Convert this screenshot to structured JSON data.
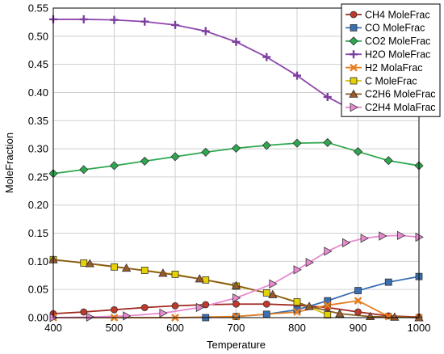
{
  "chart_data": {
    "type": "line",
    "title": "",
    "xlabel": "Temperature",
    "ylabel": "MoleFraction",
    "xlim": [
      400,
      1000
    ],
    "ylim": [
      0,
      0.55
    ],
    "x_ticks": [
      "400",
      "500",
      "600",
      "700",
      "800",
      "900",
      "1000"
    ],
    "y_ticks": [
      "0.00",
      "0.05",
      "0.10",
      "0.15",
      "0.20",
      "0.25",
      "0.30",
      "0.35",
      "0.40",
      "0.45",
      "0.50",
      "0.55"
    ],
    "grid": true,
    "legend_position": "top-right",
    "series": [
      {
        "name": "CH4 MoleFrac",
        "color": "#c0392b",
        "marker": "circle",
        "line_color": "#a0281e",
        "x": [
          400,
          450,
          500,
          550,
          600,
          650,
          700,
          750,
          800,
          850,
          900,
          950,
          1000
        ],
        "y": [
          0.007,
          0.01,
          0.014,
          0.018,
          0.021,
          0.023,
          0.024,
          0.024,
          0.022,
          0.018,
          0.01,
          0.003,
          0.001
        ]
      },
      {
        "name": "CO MoleFrac",
        "color": "#3a6fb0",
        "marker": "square",
        "line_color": "#3a6fb0",
        "x": [
          650,
          700,
          750,
          800,
          850,
          900,
          950,
          1000
        ],
        "y": [
          0.0,
          0.002,
          0.006,
          0.014,
          0.03,
          0.048,
          0.063,
          0.073
        ]
      },
      {
        "name": "CO2 MoleFrac",
        "color": "#2ea84f",
        "marker": "diamond",
        "line_color": "#2ea84f",
        "x": [
          400,
          450,
          500,
          550,
          600,
          650,
          700,
          750,
          800,
          850,
          900,
          950,
          1000
        ],
        "y": [
          0.256,
          0.263,
          0.27,
          0.278,
          0.286,
          0.294,
          0.301,
          0.306,
          0.31,
          0.311,
          0.295,
          0.279,
          0.27
        ]
      },
      {
        "name": "H2O MoleFrac",
        "color": "#7b3f9e",
        "marker": "plus",
        "line_color": "#8e44ad",
        "x": [
          400,
          450,
          500,
          550,
          600,
          650,
          700,
          750,
          800,
          850,
          880
        ],
        "y": [
          0.53,
          0.53,
          0.529,
          0.526,
          0.52,
          0.509,
          0.49,
          0.463,
          0.43,
          0.392,
          0.375
        ]
      },
      {
        "name": "H2 MolaFrac",
        "color": "#e67e22",
        "marker": "x",
        "line_color": "#e67e22",
        "x": [
          400,
          500,
          600,
          700,
          800,
          850,
          900,
          950,
          1000
        ],
        "y": [
          0.0,
          0.0,
          0.0,
          0.002,
          0.01,
          0.022,
          0.03,
          0.002,
          0.0
        ]
      },
      {
        "name": "C MoleFrac",
        "color": "#e6d200",
        "marker": "square",
        "line_color": "#d4c200",
        "x": [
          400,
          450,
          500,
          550,
          600,
          650,
          700,
          750,
          800,
          850
        ],
        "y": [
          0.103,
          0.097,
          0.09,
          0.084,
          0.077,
          0.067,
          0.056,
          0.044,
          0.028,
          0.005
        ]
      },
      {
        "name": "C2H6 MoleFrac",
        "color": "#9b5a2a",
        "marker": "triangle-up",
        "line_color": "#8b5a1e",
        "x": [
          400,
          460,
          520,
          580,
          640,
          700,
          760,
          820,
          870,
          920,
          960,
          1000
        ],
        "y": [
          0.103,
          0.096,
          0.088,
          0.079,
          0.069,
          0.057,
          0.041,
          0.02,
          0.007,
          0.002,
          0.001,
          0.0
        ]
      },
      {
        "name": "C2H4 MolaFrac",
        "color": "#e88ad0",
        "marker": "triangle-right",
        "line_color": "#e88ad0",
        "x": [
          400,
          460,
          520,
          580,
          640,
          700,
          760,
          800,
          820,
          850,
          880,
          910,
          940,
          970,
          1000
        ],
        "y": [
          0.0,
          0.001,
          0.003,
          0.008,
          0.018,
          0.035,
          0.06,
          0.085,
          0.098,
          0.118,
          0.133,
          0.141,
          0.145,
          0.146,
          0.143
        ]
      }
    ]
  }
}
